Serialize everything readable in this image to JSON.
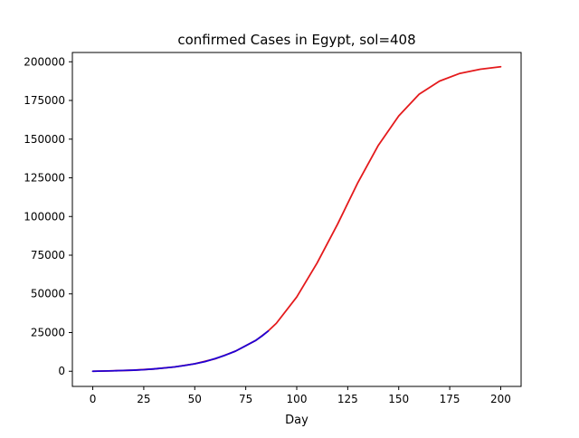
{
  "chart_data": {
    "type": "line",
    "title": "confirmed Cases in Egypt, sol=408",
    "xlabel": "Day",
    "ylabel": "",
    "xlim": [
      -10,
      210
    ],
    "ylim": [
      -9800,
      206000
    ],
    "xticks": [
      0,
      25,
      50,
      75,
      100,
      125,
      150,
      175,
      200
    ],
    "yticks": [
      0,
      25000,
      50000,
      75000,
      100000,
      125000,
      150000,
      175000,
      200000
    ],
    "grid": false,
    "legend": "none",
    "series": [
      {
        "color": "#e41a1c",
        "x": [
          0,
          10,
          20,
          30,
          40,
          50,
          60,
          70,
          80,
          86,
          90,
          100,
          110,
          120,
          130,
          140,
          150,
          160,
          170,
          180,
          190,
          200
        ],
        "y": [
          0,
          300,
          700,
          1500,
          2800,
          4800,
          8000,
          13000,
          20000,
          26000,
          31000,
          48000,
          70000,
          95000,
          122000,
          146000,
          165000,
          179000,
          187500,
          192500,
          195200,
          196800
        ]
      },
      {
        "color": "#1f00d6",
        "x": [
          0,
          5,
          10,
          15,
          20,
          25,
          30,
          35,
          40,
          45,
          50,
          55,
          60,
          65,
          70,
          75,
          80,
          83,
          86
        ],
        "y": [
          0,
          150,
          300,
          500,
          700,
          1000,
          1500,
          2100,
          2800,
          3700,
          4800,
          6200,
          8200,
          10400,
          13000,
          16500,
          20000,
          22800,
          26000
        ]
      }
    ]
  }
}
